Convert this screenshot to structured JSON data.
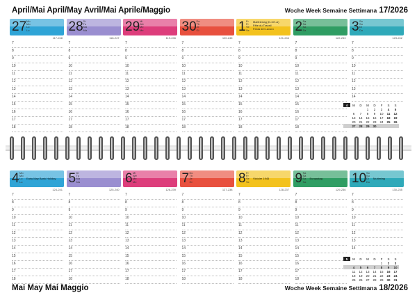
{
  "header": {
    "months": "April/Mai  April/May  Avril/Mai  Aprile/Maggio",
    "week_label": "Woche  Week  Semaine  Settimana",
    "week_number": "17/2026"
  },
  "footer": {
    "months": "Mai  May  Mai  Maggio",
    "week_label": "Woche  Week  Semaine  Settimana",
    "week_number": "18/2026"
  },
  "hours": [
    "7",
    "8",
    "9",
    "10",
    "11",
    "12",
    "13",
    "14",
    "15",
    "16",
    "17",
    "18"
  ],
  "week1": [
    {
      "num": "27",
      "abbr": "Mo\nMo\nLu\nLu",
      "holiday": "",
      "code": "117-248",
      "color": "#2fa4d6"
    },
    {
      "num": "28",
      "abbr": "Di\nTu\nMa\nMa",
      "holiday": "",
      "code": "118-247",
      "color": "#9a8ed0"
    },
    {
      "num": "29",
      "abbr": "Mi\nWe\nMe\nMe",
      "holiday": "",
      "code": "119-246",
      "color": "#dd3d7b"
    },
    {
      "num": "30",
      "abbr": "Do\nTh\nJe\nGi",
      "holiday": "",
      "code": "120-245",
      "color": "#e8503e"
    },
    {
      "num": "1",
      "abbr": "Fr\nFr\nVe\nVe",
      "holiday": "Maifeiertag (D-CH-A)\nFête du Travail\nFesta del Lavoro",
      "code": "121-244",
      "color": "#f3c21d"
    },
    {
      "num": "2",
      "abbr": "Sa\nSa\nSa\nSa",
      "holiday": "",
      "code": "122-243",
      "color": "#2f9d63"
    },
    {
      "num": "3",
      "abbr": "So\nSu\nDi\nDo",
      "holiday": "",
      "code": "123-242",
      "color": "#2fa9b9"
    }
  ],
  "week2": [
    {
      "num": "4",
      "abbr": "Mo\nMo\nLu\nLu",
      "holiday": "Early May Bank Holiday",
      "code": "124-241",
      "color": "#2fa4d6"
    },
    {
      "num": "5",
      "abbr": "Di\nTu\nMa\nMa",
      "holiday": "",
      "code": "125-240",
      "color": "#9a8ed0"
    },
    {
      "num": "6",
      "abbr": "Mi\nWe\nMe\nMe",
      "holiday": "",
      "code": "126-239",
      "color": "#dd3d7b"
    },
    {
      "num": "7",
      "abbr": "Do\nTh\nJe\nGi",
      "holiday": "",
      "code": "127-238",
      "color": "#e8503e"
    },
    {
      "num": "8",
      "abbr": "Fr\nFr\nVe\nVe",
      "holiday": "Victoire 1945",
      "code": "128-237",
      "color": "#f3c21d"
    },
    {
      "num": "9",
      "abbr": "Sa\nSa\nSa\nSa",
      "holiday": "Europatag",
      "code": "129-236",
      "color": "#2f9d63"
    },
    {
      "num": "10",
      "abbr": "So\nSu\nDi\nDo",
      "holiday": "Muttertag",
      "code": "130-235",
      "color": "#2fa9b9"
    }
  ],
  "mini_cal_april": {
    "month": "4",
    "weekdays": [
      "M",
      "D",
      "M",
      "D",
      "F",
      "S",
      "S"
    ],
    "rows": [
      [
        "",
        "",
        "1",
        "2",
        "3",
        "4",
        "5"
      ],
      [
        "6",
        "7",
        "8",
        "9",
        "10",
        "11",
        "12"
      ],
      [
        "13",
        "14",
        "15",
        "16",
        "17",
        "18",
        "19"
      ],
      [
        "20",
        "21",
        "22",
        "23",
        "24",
        "25",
        "26"
      ],
      [
        "27",
        "28",
        "29",
        "30",
        "",
        "",
        ""
      ]
    ],
    "highlight_row": 4
  },
  "mini_cal_may": {
    "month": "5",
    "weekdays": [
      "M",
      "D",
      "M",
      "D",
      "F",
      "S",
      "S"
    ],
    "rows": [
      [
        "",
        "",
        "",
        "",
        "1",
        "2",
        "3"
      ],
      [
        "4",
        "5",
        "6",
        "7",
        "8",
        "9",
        "10"
      ],
      [
        "11",
        "12",
        "13",
        "14",
        "15",
        "16",
        "17"
      ],
      [
        "18",
        "19",
        "20",
        "21",
        "22",
        "23",
        "24"
      ],
      [
        "25",
        "26",
        "27",
        "28",
        "29",
        "30",
        "31"
      ]
    ],
    "highlight_row": 1
  }
}
